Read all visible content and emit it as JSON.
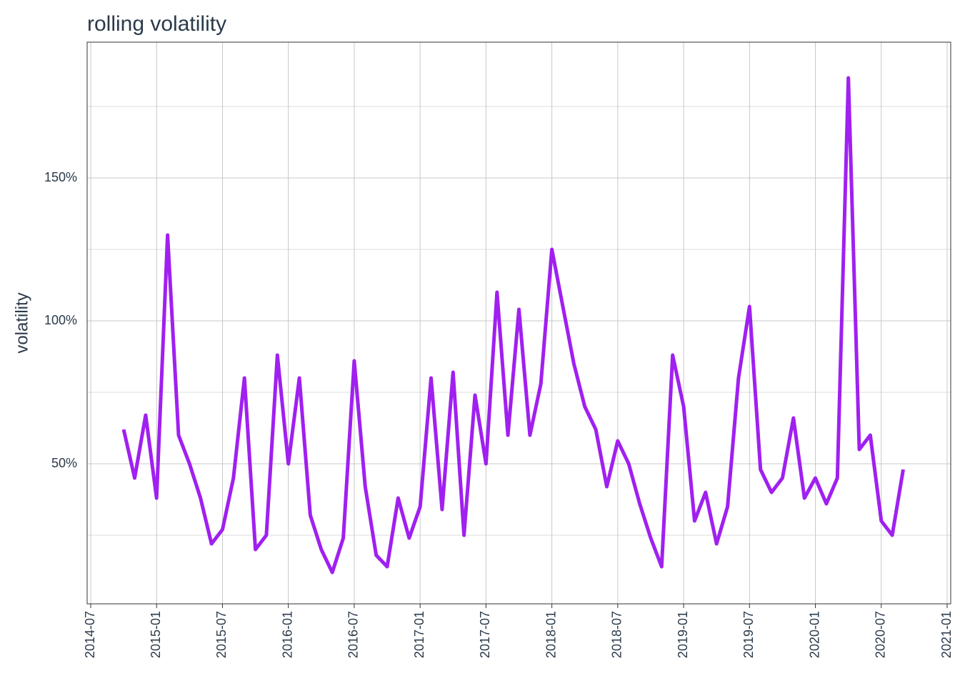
{
  "chart_data": {
    "type": "line",
    "title": "rolling volatility",
    "y_label": "volatility",
    "x": [
      "2014-10",
      "2014-11",
      "2014-12",
      "2015-01",
      "2015-02",
      "2015-03",
      "2015-04",
      "2015-05",
      "2015-06",
      "2015-07",
      "2015-08",
      "2015-09",
      "2015-10",
      "2015-11",
      "2015-12",
      "2016-01",
      "2016-02",
      "2016-03",
      "2016-04",
      "2016-05",
      "2016-06",
      "2016-07",
      "2016-08",
      "2016-09",
      "2016-10",
      "2016-11",
      "2016-12",
      "2017-01",
      "2017-02",
      "2017-03",
      "2017-04",
      "2017-05",
      "2017-06",
      "2017-07",
      "2017-08",
      "2017-09",
      "2017-10",
      "2017-11",
      "2017-12",
      "2018-01",
      "2018-02",
      "2018-03",
      "2018-04",
      "2018-05",
      "2018-06",
      "2018-07",
      "2018-08",
      "2018-09",
      "2018-10",
      "2018-11",
      "2018-12",
      "2019-01",
      "2019-02",
      "2019-03",
      "2019-04",
      "2019-05",
      "2019-06",
      "2019-07",
      "2019-08",
      "2019-09",
      "2019-10",
      "2019-11",
      "2019-12",
      "2020-01",
      "2020-02",
      "2020-03",
      "2020-04",
      "2020-05",
      "2020-06",
      "2020-07",
      "2020-08",
      "2020-09"
    ],
    "series": [
      {
        "name": "volatility",
        "color": "#a020f0",
        "values": [
          62,
          45,
          67,
          38,
          130,
          60,
          50,
          38,
          22,
          27,
          45,
          80,
          20,
          25,
          88,
          50,
          80,
          32,
          20,
          12,
          24,
          86,
          42,
          18,
          14,
          38,
          24,
          35,
          80,
          34,
          82,
          25,
          74,
          50,
          110,
          60,
          104,
          60,
          78,
          125,
          105,
          85,
          70,
          62,
          42,
          58,
          50,
          36,
          24,
          14,
          88,
          70,
          30,
          40,
          22,
          35,
          80,
          105,
          48,
          40,
          45,
          66,
          38,
          45,
          36,
          45,
          185,
          55,
          60,
          30,
          25,
          48
        ]
      }
    ],
    "xlim": [
      "2014-07",
      "2021-01"
    ],
    "xticks": [
      "2014-07",
      "2015-01",
      "2015-07",
      "2016-01",
      "2016-07",
      "2017-01",
      "2017-07",
      "2018-01",
      "2018-07",
      "2019-01",
      "2019-07",
      "2020-01",
      "2020-07",
      "2021-01"
    ],
    "ylim": [
      1,
      197.5
    ],
    "yticks": [
      {
        "value": 50,
        "label": "50%"
      },
      {
        "value": 100,
        "label": "100%"
      },
      {
        "value": 150,
        "label": "150%"
      }
    ],
    "minor_yticks": [
      25,
      75,
      125,
      175
    ],
    "grid": true
  }
}
